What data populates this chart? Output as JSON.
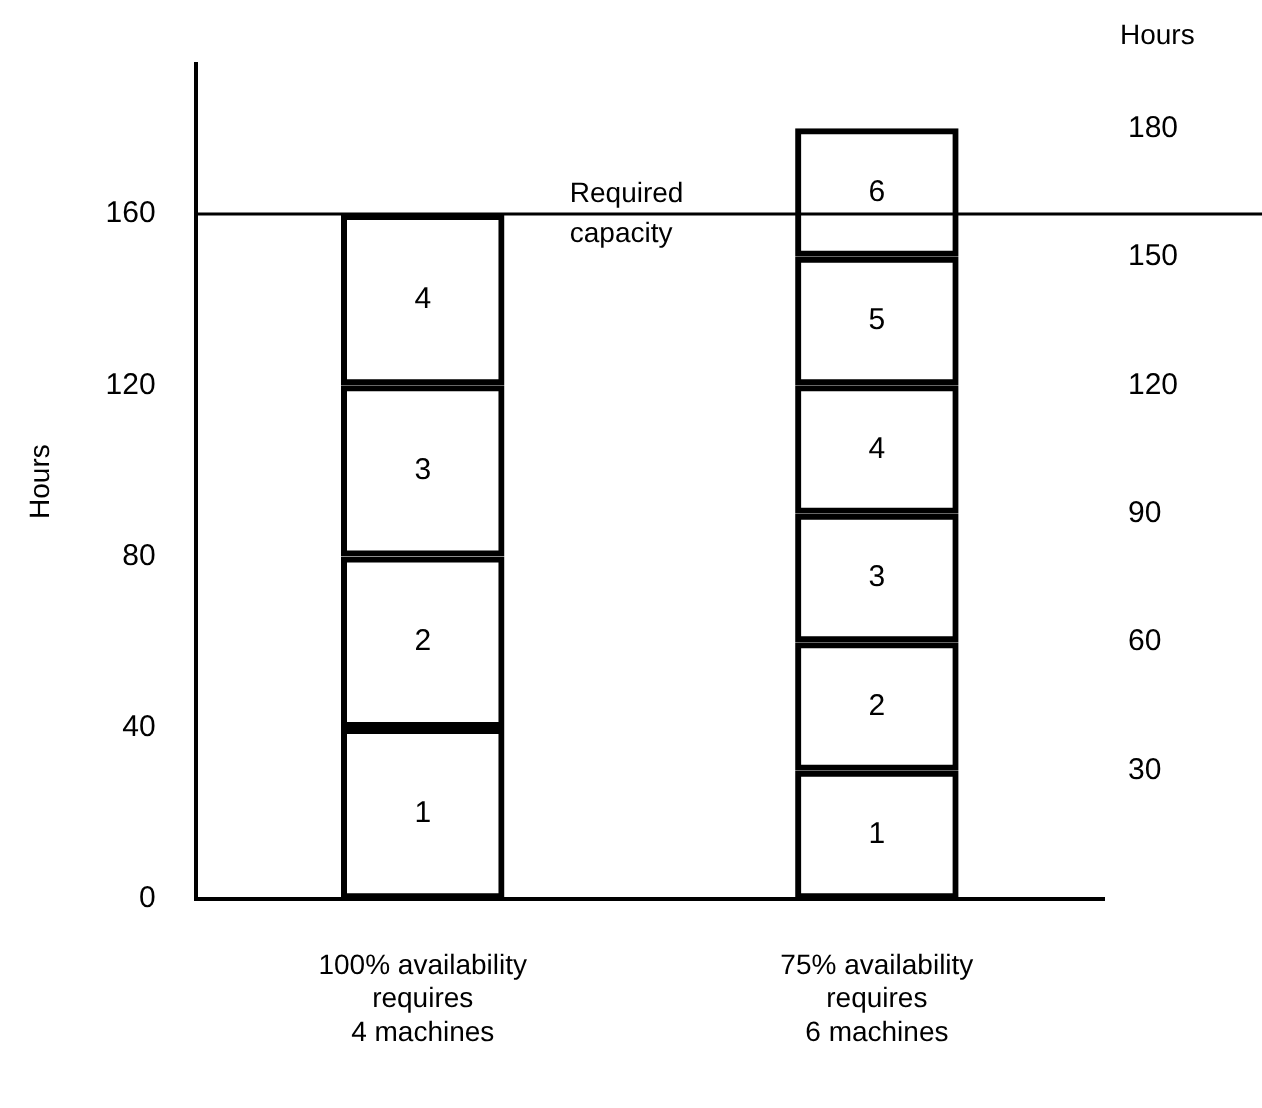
{
  "chart_data": {
    "type": "bar",
    "stacked": true,
    "ylabel": "Hours",
    "y2label": "Hours",
    "categories": [
      "100% availability\nrequires\n4 machines",
      "75% availability\nrequires\n6 machines"
    ],
    "series": [
      {
        "name": "1",
        "color": "#000000",
        "values": [
          40,
          30
        ]
      },
      {
        "name": "2",
        "color": "#000000",
        "values": [
          40,
          30
        ]
      },
      {
        "name": "3",
        "color": "#000000",
        "values": [
          40,
          30
        ]
      },
      {
        "name": "4",
        "color": "#000000",
        "values": [
          40,
          30
        ]
      },
      {
        "name": "5",
        "color": "#000000",
        "values": [
          null,
          30
        ]
      },
      {
        "name": "6",
        "color": "#000000",
        "values": [
          null,
          30
        ]
      }
    ],
    "ylim": [
      0,
      195
    ],
    "yticks": [
      0,
      40,
      80,
      120,
      160
    ],
    "y2lim": [
      0,
      195
    ],
    "y2ticks": [
      30,
      60,
      90,
      120,
      150,
      180
    ],
    "ref_lines": [
      {
        "axis": "y",
        "value": 160,
        "label": "Required\ncapacity"
      }
    ],
    "grid": false,
    "legend": false
  }
}
